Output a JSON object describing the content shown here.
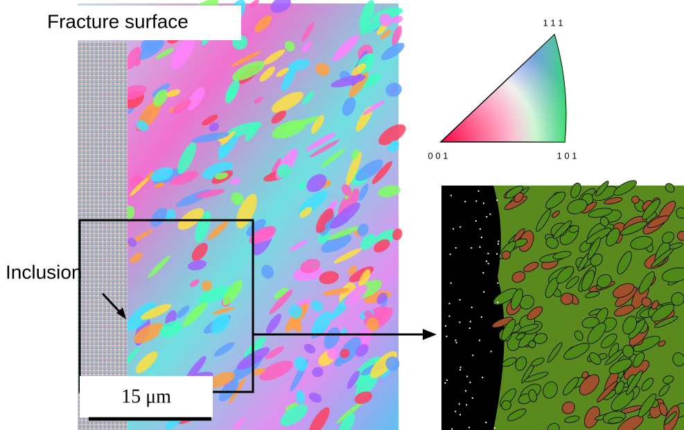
{
  "labels": {
    "fracture_surface": "Fracture surface",
    "inclusion": "Inclusion",
    "scale_bar": "15 μm"
  },
  "ipf_key": {
    "top": "1 1 1",
    "left": "0 0 1",
    "right": "1 0 1"
  }
}
